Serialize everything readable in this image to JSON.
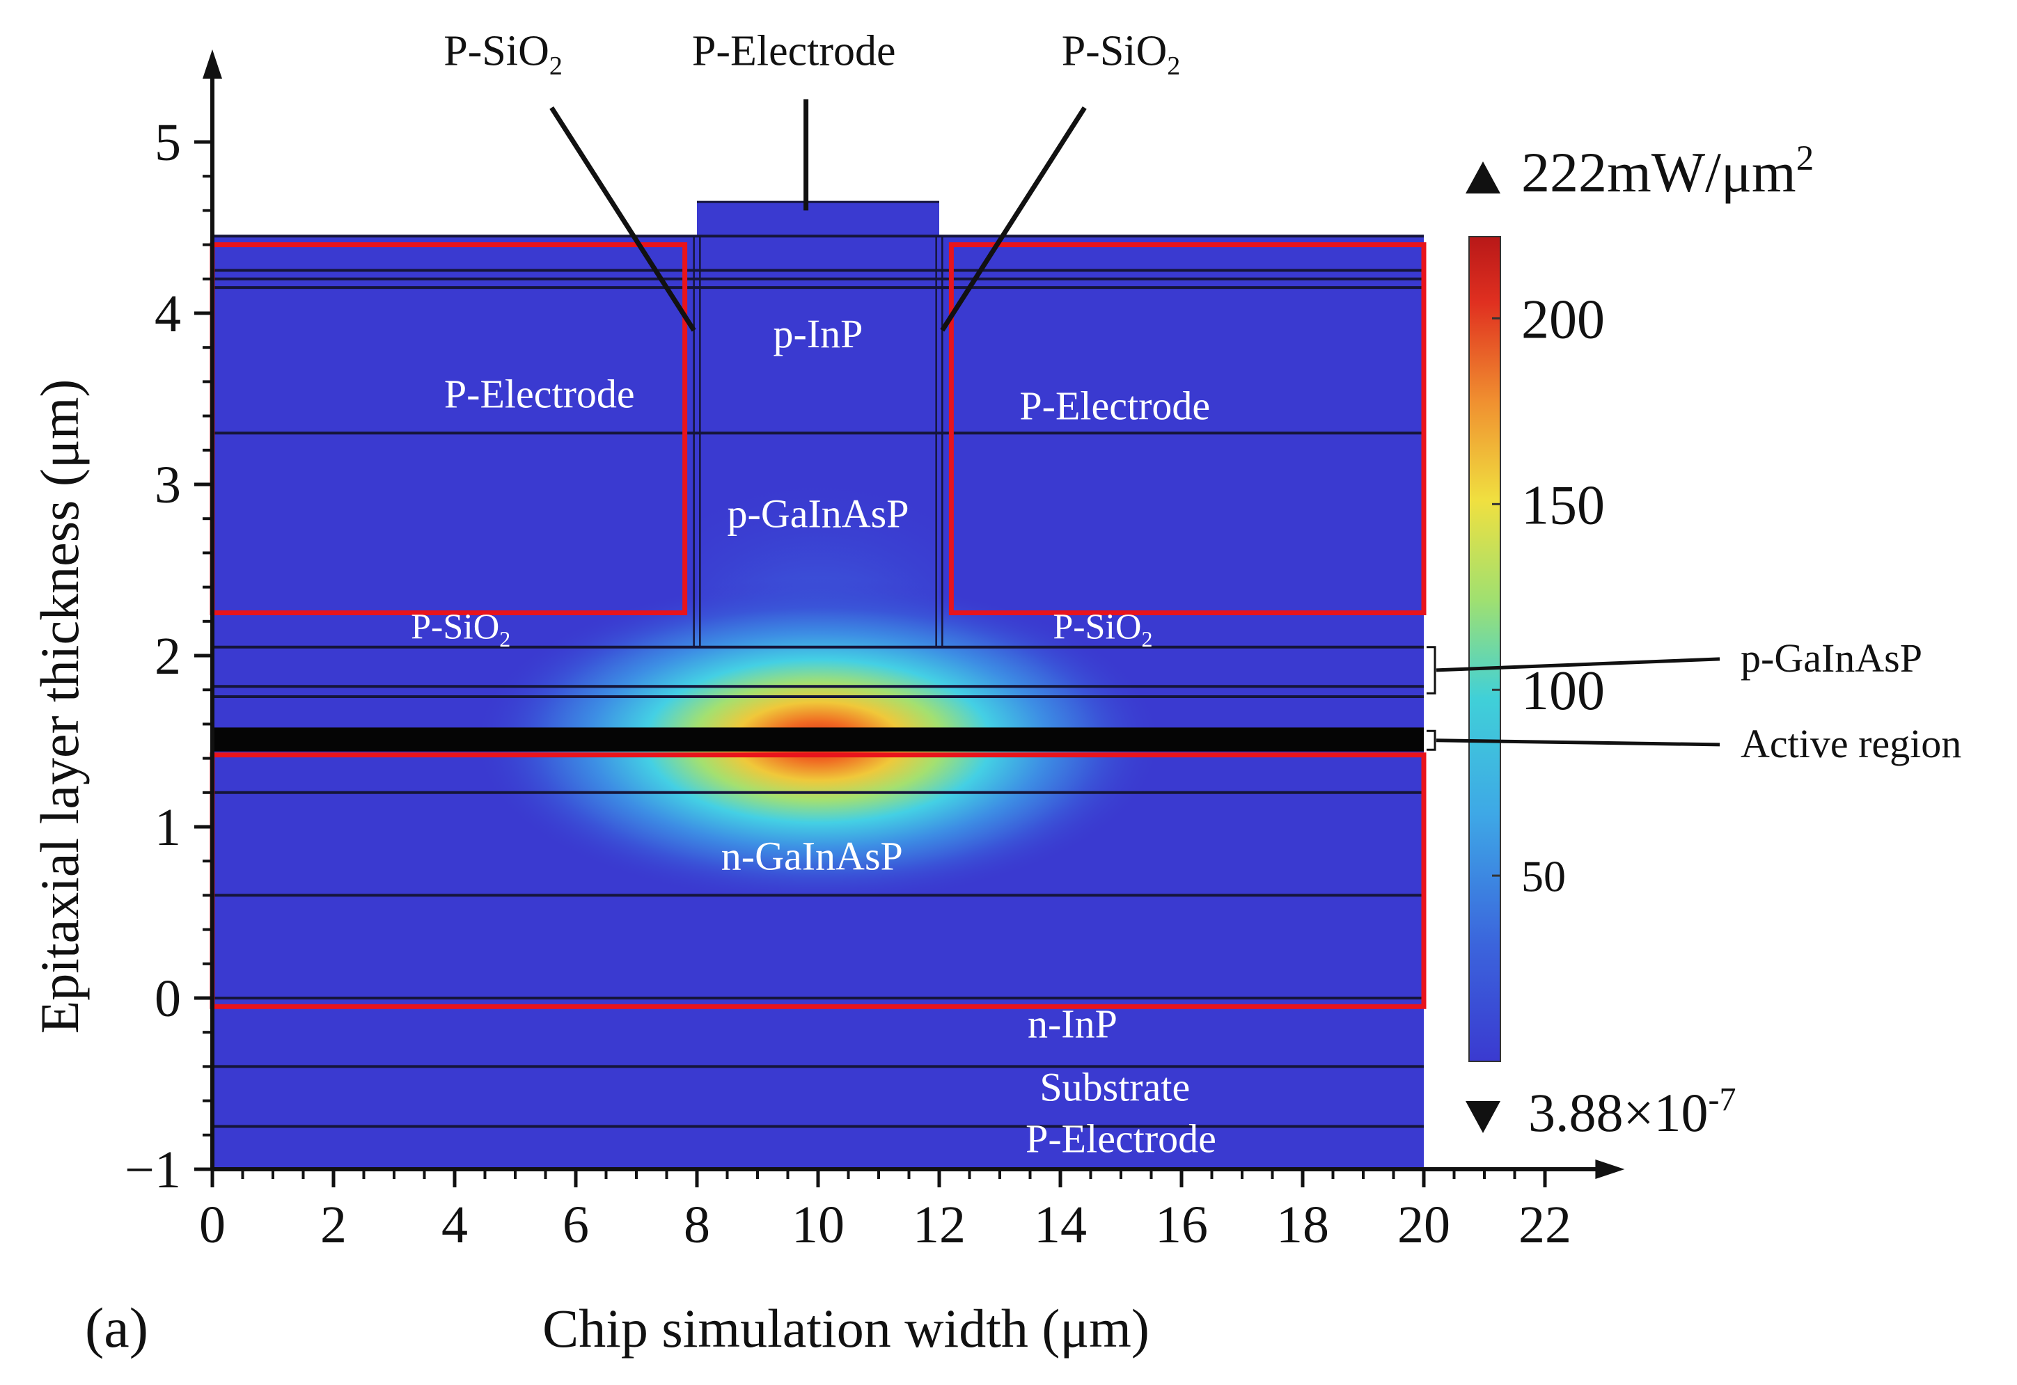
{
  "panel_label": "(a)",
  "chart_data": {
    "type": "heatmap",
    "title": "",
    "xlabel": "Chip simulation width (μm)",
    "ylabel": "Epitaxial layer thickness (μm)",
    "xlim": [
      0,
      23
    ],
    "ylim": [
      -1,
      5.5
    ],
    "x_ticks": [
      0,
      2,
      4,
      6,
      8,
      10,
      12,
      14,
      16,
      18,
      20,
      22
    ],
    "y_ticks": [
      -1,
      0,
      1,
      2,
      3,
      4,
      5
    ],
    "x_tick_labels": [
      "0",
      "2",
      "4",
      "6",
      "8",
      "10",
      "12",
      "14",
      "16",
      "18",
      "20",
      "22"
    ],
    "y_tick_labels": [
      "−1",
      "0",
      "1",
      "2",
      "3",
      "4",
      "5"
    ],
    "domain": {
      "x_min": 0,
      "x_max": 20,
      "y_min": -1,
      "y_max": 4.45
    },
    "ridge": {
      "x_min": 8,
      "x_max": 12,
      "y_min": 2.05,
      "y_max": 4.65
    },
    "layer_boundaries_y": [
      -0.75,
      -0.4,
      0,
      0.6,
      1.2,
      1.42,
      1.52,
      1.56,
      1.76,
      1.82,
      2.05,
      3.3,
      4.15,
      4.2,
      4.25,
      4.45
    ],
    "mode_peak": {
      "x": 10,
      "y": 1.5,
      "sigma_x": 2.2,
      "sigma_y": 0.28
    },
    "colorbar": {
      "min": 3.88e-07,
      "max": 222,
      "max_label_number": "222mW/μm",
      "max_label_exponent": "2",
      "min_label_mantissa": "3.88×10",
      "min_label_exponent": "-7",
      "ticks": [
        50,
        100,
        150,
        200
      ],
      "tick_labels": [
        "50",
        "100",
        "150",
        "200"
      ],
      "colormap": [
        "#3a3ad0",
        "#3b82e0",
        "#40c8e0",
        "#a0e070",
        "#f0e040",
        "#f09030",
        "#e03020",
        "#c01818"
      ]
    },
    "highlight_regions": [
      {
        "name": "P-Electrode left",
        "x": [
          0,
          7.8
        ],
        "y": [
          2.25,
          4.4
        ]
      },
      {
        "name": "P-Electrode right",
        "x": [
          12.2,
          20
        ],
        "y": [
          2.25,
          4.4
        ]
      },
      {
        "name": "n-GaInAsP",
        "x": [
          0,
          20
        ],
        "y": [
          -0.05,
          1.42
        ]
      }
    ],
    "region_labels": [
      {
        "text": "p-InP",
        "x": 10.0,
        "y": 3.8
      },
      {
        "text": "P-Electrode",
        "x": 5.4,
        "y": 3.45
      },
      {
        "text": "P-Electrode",
        "x": 14.9,
        "y": 3.38
      },
      {
        "text": "p-GaInAsP",
        "x": 10.0,
        "y": 2.75
      },
      {
        "text": "n-GaInAsP",
        "x": 9.9,
        "y": 0.75
      },
      {
        "text": "n-InP",
        "x": 14.2,
        "y": -0.23
      },
      {
        "text": "Substrate",
        "x": 14.9,
        "y": -0.6
      },
      {
        "text": "P-Electrode",
        "x": 15.0,
        "y": -0.9
      }
    ],
    "sio2_labels": [
      {
        "main": "P-SiO",
        "sub": "2",
        "x": 4.1,
        "y": 2.1
      },
      {
        "main": "P-SiO",
        "sub": "2",
        "x": 14.7,
        "y": 2.1
      }
    ],
    "annotations": [
      {
        "text": "P-Electrode",
        "sub": "",
        "label_x": 9.6,
        "label_y": 5.45,
        "line": [
          [
            9.8,
            5.25
          ],
          [
            9.8,
            4.6
          ]
        ]
      },
      {
        "text": "P-SiO",
        "sub": "2",
        "label_x": 4.8,
        "label_y": 5.45,
        "line": [
          [
            5.6,
            5.2
          ],
          [
            7.95,
            3.9
          ]
        ]
      },
      {
        "text": "P-SiO",
        "sub": "2",
        "label_x": 15.0,
        "label_y": 5.45,
        "line": [
          [
            14.4,
            5.2
          ],
          [
            12.05,
            3.9
          ]
        ]
      }
    ],
    "side_annotations": [
      {
        "text": "p-GaInAsP",
        "bracket_y": [
          1.78,
          2.05
        ],
        "label_y": 1.98
      },
      {
        "text": "Active region",
        "bracket_y": [
          1.45,
          1.56
        ],
        "label_y": 1.48
      }
    ]
  }
}
